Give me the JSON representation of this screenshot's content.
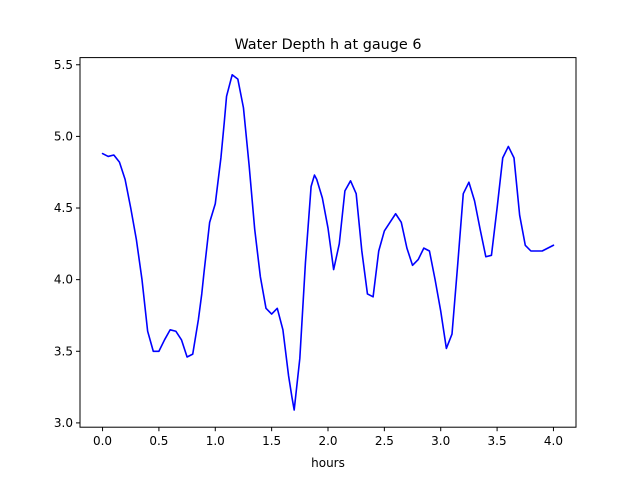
{
  "chart_data": {
    "type": "line",
    "title": "Water Depth h at gauge 6",
    "xlabel": "hours",
    "ylabel": "",
    "xlim": [
      -0.2,
      4.2
    ],
    "ylim": [
      2.97,
      5.55
    ],
    "grid": false,
    "legend": "none",
    "xticks": [
      0.0,
      0.5,
      1.0,
      1.5,
      2.0,
      2.5,
      3.0,
      3.5,
      4.0
    ],
    "xtick_labels": [
      "0.0",
      "0.5",
      "1.0",
      "1.5",
      "2.0",
      "2.5",
      "3.0",
      "3.5",
      "4.0"
    ],
    "yticks": [
      3.0,
      3.5,
      4.0,
      4.5,
      5.0,
      5.5
    ],
    "ytick_labels": [
      "3.0",
      "3.5",
      "4.0",
      "4.5",
      "5.0",
      "5.5"
    ],
    "series": [
      {
        "name": "",
        "color": "#0000ff",
        "x": [
          0.0,
          0.05,
          0.1,
          0.15,
          0.2,
          0.25,
          0.3,
          0.35,
          0.4,
          0.45,
          0.5,
          0.55,
          0.6,
          0.65,
          0.7,
          0.75,
          0.8,
          0.85,
          0.88,
          0.9,
          0.95,
          1.0,
          1.05,
          1.08,
          1.1,
          1.15,
          1.2,
          1.25,
          1.3,
          1.35,
          1.4,
          1.45,
          1.5,
          1.55,
          1.6,
          1.65,
          1.68,
          1.7,
          1.75,
          1.8,
          1.85,
          1.88,
          1.9,
          1.95,
          2.0,
          2.05,
          2.1,
          2.15,
          2.2,
          2.25,
          2.3,
          2.35,
          2.4,
          2.45,
          2.5,
          2.55,
          2.6,
          2.65,
          2.7,
          2.75,
          2.8,
          2.85,
          2.9,
          2.95,
          3.0,
          3.05,
          3.1,
          3.15,
          3.2,
          3.25,
          3.3,
          3.35,
          3.4,
          3.45,
          3.5,
          3.55,
          3.6,
          3.65,
          3.7,
          3.75,
          3.8,
          3.85,
          3.9,
          3.95,
          4.0
        ],
        "y": [
          4.88,
          4.86,
          4.87,
          4.82,
          4.7,
          4.5,
          4.28,
          4.0,
          3.64,
          3.5,
          3.5,
          3.58,
          3.65,
          3.64,
          3.58,
          3.46,
          3.48,
          3.72,
          3.9,
          4.05,
          4.4,
          4.53,
          4.85,
          5.1,
          5.28,
          5.43,
          5.4,
          5.2,
          4.8,
          4.35,
          4.02,
          3.8,
          3.76,
          3.8,
          3.65,
          3.33,
          3.18,
          3.09,
          3.45,
          4.12,
          4.65,
          4.73,
          4.7,
          4.57,
          4.36,
          4.07,
          4.25,
          4.62,
          4.69,
          4.6,
          4.2,
          3.9,
          3.88,
          4.2,
          4.34,
          4.4,
          4.46,
          4.4,
          4.22,
          4.1,
          4.14,
          4.22,
          4.2,
          4.0,
          3.78,
          3.52,
          3.62,
          4.1,
          4.6,
          4.68,
          4.55,
          4.35,
          4.16,
          4.17,
          4.5,
          4.85,
          4.93,
          4.85,
          4.45,
          4.24,
          4.2,
          4.2,
          4.2,
          4.22,
          4.24
        ]
      }
    ]
  }
}
